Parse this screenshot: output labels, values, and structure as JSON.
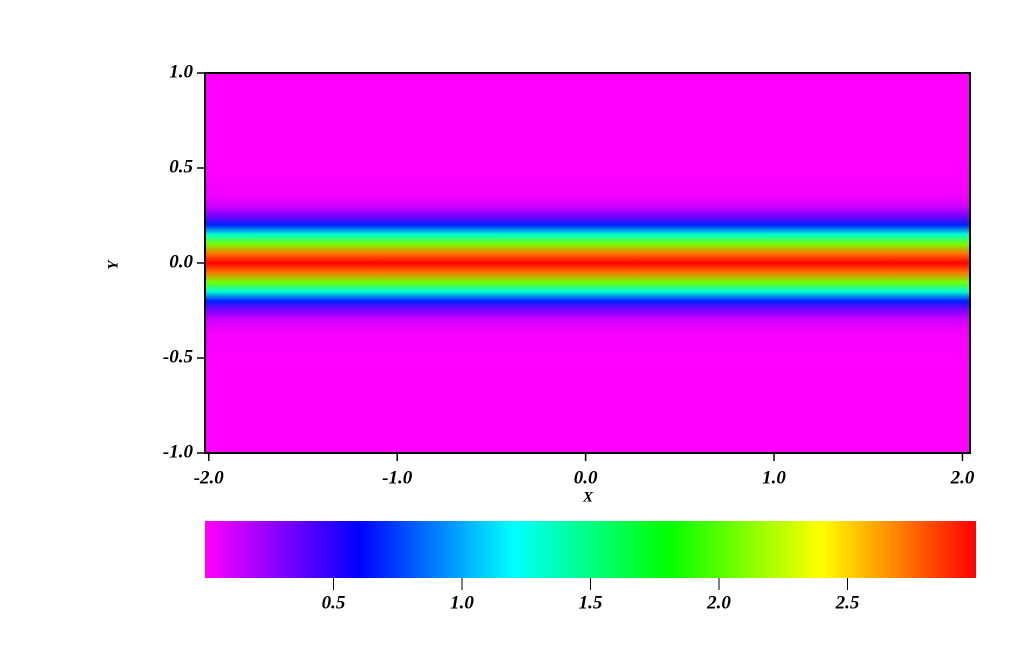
{
  "chart_data": {
    "type": "heatmap",
    "x_label": "X",
    "y_label": "Y",
    "xlim": [
      -2.02,
      2.04
    ],
    "ylim": [
      -1,
      1
    ],
    "xticks": [
      {
        "value": -2,
        "label": "-2.0"
      },
      {
        "value": -1,
        "label": "-1.0"
      },
      {
        "value": 0,
        "label": "0.0"
      },
      {
        "value": 1,
        "label": "1.0"
      },
      {
        "value": 2,
        "label": "2.0"
      }
    ],
    "yticks": [
      {
        "value": -1,
        "label": "-1.0"
      },
      {
        "value": -0.5,
        "label": "-0.5"
      },
      {
        "value": 0,
        "label": "0.0"
      },
      {
        "value": 0.5,
        "label": "0.5"
      },
      {
        "value": 1,
        "label": "1.0"
      }
    ],
    "y": [
      1,
      0.95,
      0.9,
      0.85,
      0.8,
      0.75,
      0.7,
      0.65,
      0.6,
      0.55,
      0.5,
      0.45,
      0.4,
      0.35,
      0.3,
      0.25,
      0.2,
      0.15,
      0.1,
      0.05,
      0,
      -0.05,
      -0.1,
      -0.15,
      -0.2,
      -0.25,
      -0.3,
      -0.35,
      -0.4,
      -0.45,
      -0.5,
      -0.55,
      -0.6,
      -0.65,
      -0.7,
      -0.75,
      -0.8,
      -0.85,
      -0.9,
      -0.95,
      -1
    ],
    "values": [
      0,
      0,
      0,
      0,
      0,
      0,
      0,
      0,
      0,
      0,
      0.01,
      0.01,
      0.02,
      0.04,
      0.11,
      0.3,
      0.68,
      1.3,
      2.07,
      2.73,
      3,
      2.73,
      2.07,
      1.3,
      0.68,
      0.3,
      0.11,
      0.04,
      0.02,
      0.01,
      0.01,
      0,
      0,
      0,
      0,
      0,
      0,
      0,
      0,
      0,
      0
    ],
    "colorscale": [
      "#ff00ff",
      "#0000ff",
      "#00ffff",
      "#00ff00",
      "#ffff00",
      "#ff0000"
    ],
    "clim": [
      0,
      3
    ],
    "cticks": [
      0.5,
      {
        "value": 1,
        "label": "1.0"
      },
      1.5,
      {
        "value": 2,
        "label": "2.0"
      },
      2.5
    ]
  }
}
